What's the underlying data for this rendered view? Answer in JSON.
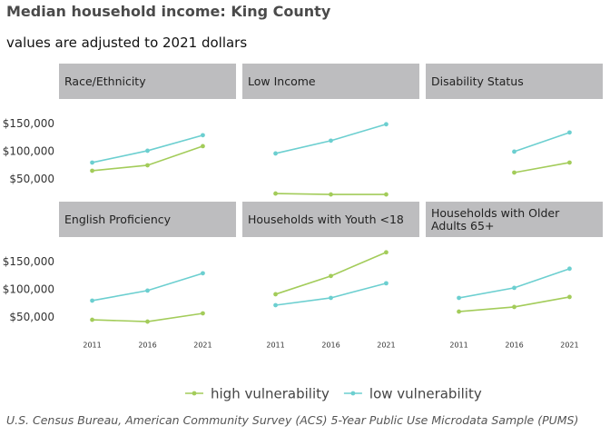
{
  "title": "Median household income: King County",
  "subtitle": "values are adjusted to 2021 dollars",
  "caption": "U.S. Census Bureau, American Community Survey (ACS) 5-Year Public Use Microdata Sample (PUMS)",
  "chart_data": [
    {
      "type": "line",
      "title": "Race/Ethnicity",
      "x": [
        2011,
        2016,
        2021
      ],
      "xlim": [
        2008,
        2024
      ],
      "ylim": [
        10000,
        175000
      ],
      "yticks": [
        {
          "value": 50000,
          "label": "$50,000"
        },
        {
          "value": 100000,
          "label": "$100,000"
        },
        {
          "value": 150000,
          "label": "$150,000"
        }
      ],
      "series": [
        {
          "name": "high vulnerability",
          "color": "#a3cc5a",
          "values": [
            65600,
            75400,
            109800
          ]
        },
        {
          "name": "low vulnerability",
          "color": "#6ccfd0",
          "values": [
            80300,
            101600,
            129500
          ]
        }
      ]
    },
    {
      "type": "line",
      "title": "Low Income",
      "x": [
        2011,
        2016,
        2021
      ],
      "xlim": [
        2008,
        2024
      ],
      "ylim": [
        10000,
        175000
      ],
      "series": [
        {
          "name": "high vulnerability",
          "color": "#a3cc5a",
          "values": [
            24600,
            23000,
            23000
          ]
        },
        {
          "name": "low vulnerability",
          "color": "#6ccfd0",
          "values": [
            96700,
            119700,
            149200
          ]
        }
      ]
    },
    {
      "type": "line",
      "title": "Disability Status",
      "x": [
        2011,
        2016,
        2021
      ],
      "xlim": [
        2008,
        2024
      ],
      "ylim": [
        10000,
        175000
      ],
      "series": [
        {
          "name": "high vulnerability",
          "color": "#a3cc5a",
          "values": [
            null,
            62300,
            80300
          ]
        },
        {
          "name": "low vulnerability",
          "color": "#6ccfd0",
          "values": [
            null,
            100000,
            134400
          ]
        }
      ]
    },
    {
      "type": "line",
      "title": "English Proficiency",
      "x": [
        2011,
        2016,
        2021
      ],
      "xlim": [
        2008,
        2024
      ],
      "ylim": [
        10000,
        175000
      ],
      "xticks": [
        2011,
        2016,
        2021
      ],
      "yticks": [
        {
          "value": 50000,
          "label": "$50,000"
        },
        {
          "value": 100000,
          "label": "$100,000"
        },
        {
          "value": 150000,
          "label": "$150,000"
        }
      ],
      "series": [
        {
          "name": "high vulnerability",
          "color": "#a3cc5a",
          "values": [
            45900,
            42600,
            57400
          ]
        },
        {
          "name": "low vulnerability",
          "color": "#6ccfd0",
          "values": [
            80300,
            98400,
            129500
          ]
        }
      ]
    },
    {
      "type": "line",
      "title": "Households with Youth <18",
      "x": [
        2011,
        2016,
        2021
      ],
      "xlim": [
        2008,
        2024
      ],
      "ylim": [
        10000,
        175000
      ],
      "xticks": [
        2011,
        2016,
        2021
      ],
      "series": [
        {
          "name": "high vulnerability",
          "color": "#a3cc5a",
          "values": [
            91800,
            124600,
            167200
          ]
        },
        {
          "name": "low vulnerability",
          "color": "#6ccfd0",
          "values": [
            72100,
            85200,
            111500
          ]
        }
      ]
    },
    {
      "type": "line",
      "title": "Households with Older Adults 65+",
      "x": [
        2011,
        2016,
        2021
      ],
      "xlim": [
        2008,
        2024
      ],
      "ylim": [
        10000,
        175000
      ],
      "xticks": [
        2011,
        2016,
        2021
      ],
      "series": [
        {
          "name": "high vulnerability",
          "color": "#a3cc5a",
          "values": [
            60600,
            68900,
            86900
          ]
        },
        {
          "name": "low vulnerability",
          "color": "#6ccfd0",
          "values": [
            85200,
            103300,
            137700
          ]
        }
      ]
    }
  ]
}
